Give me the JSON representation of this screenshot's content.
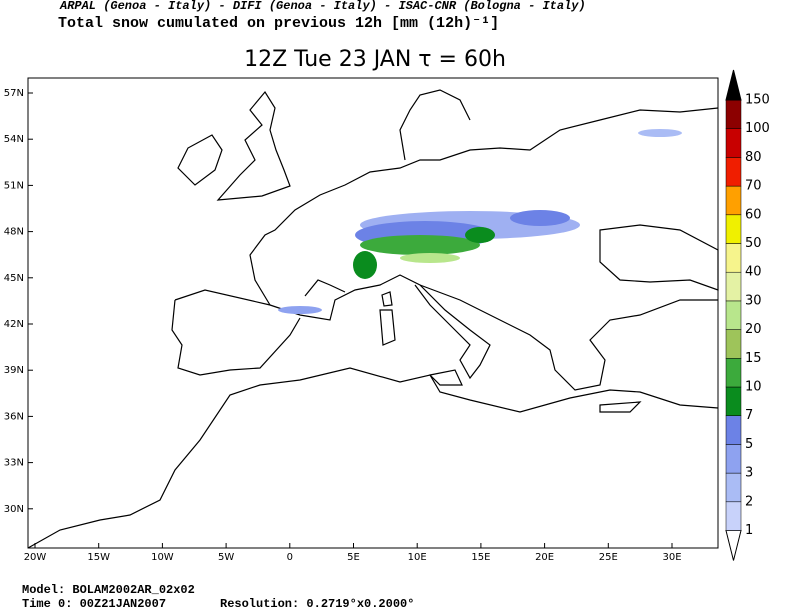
{
  "header": {
    "credits": "ARPAL (Genoa - Italy)  -  DIFI (Genoa - Italy)  -  ISAC-CNR (Bologna - Italy)",
    "field": "Total snow cumulated on previous 12h [mm (12h)⁻¹]",
    "title": "12Z Tue 23 JAN  τ = 60h"
  },
  "map": {
    "lat_labels": [
      "57N",
      "54N",
      "51N",
      "48N",
      "45N",
      "42N",
      "39N",
      "36N",
      "33N",
      "30N"
    ],
    "lon_labels": [
      "20W",
      "15W",
      "10W",
      "5W",
      "0",
      "5E",
      "10E",
      "15E",
      "20E",
      "25E",
      "30E"
    ]
  },
  "colorbar": {
    "levels": [
      1,
      2,
      3,
      5,
      7,
      10,
      15,
      20,
      30,
      40,
      50,
      60,
      70,
      80,
      100,
      150
    ],
    "colors": [
      "#e1e6fa",
      "#c8d2fa",
      "#aabcf5",
      "#8ea2f0",
      "#6c82e6",
      "#0a8c1e",
      "#3caa3c",
      "#9ec45a",
      "#b8e68c",
      "#e4f2a4",
      "#f6f48c",
      "#f0f000",
      "#ffa000",
      "#f01e00",
      "#c80000",
      "#8c0000",
      "#000000"
    ]
  },
  "footer": {
    "model": "Model: BOLAM2002AR_02x02",
    "time": "Time 0: 00Z21JAN2007",
    "resolution": "Resolution: 0.2719°x0.2000°"
  }
}
